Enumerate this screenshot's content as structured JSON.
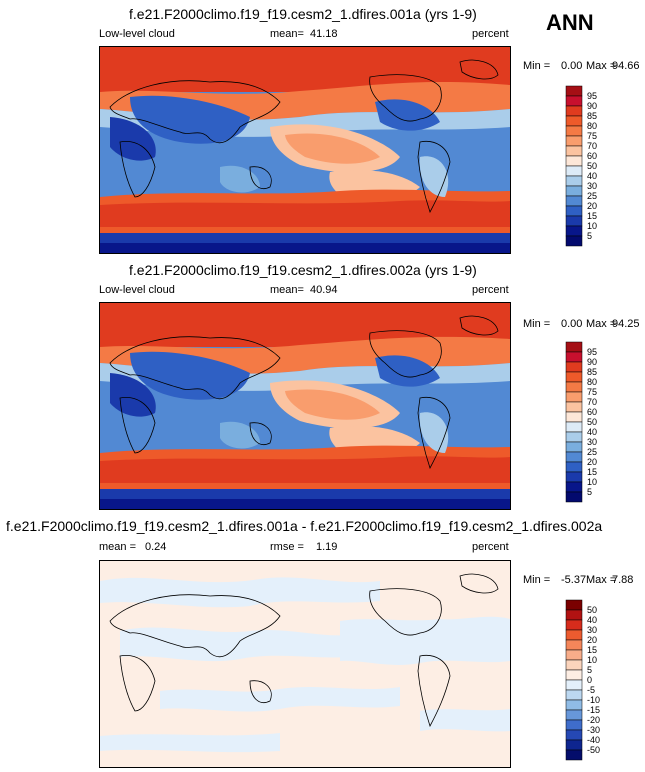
{
  "season": "ANN",
  "chart_data": [
    {
      "type": "heatmap",
      "title": "f.e21.F2000climo.f19_f19.cesm2_1.dfires.001a (yrs 1-9)",
      "left_label": "Low-level cloud",
      "mean_label": "mean=",
      "mean": "41.18",
      "units": "percent",
      "min_label": "Min =",
      "min": "0.00",
      "max_label": "Max =",
      "max": "94.66",
      "colorbar_levels": [
        "95",
        "90",
        "85",
        "80",
        "75",
        "70",
        "60",
        "50",
        "40",
        "30",
        "25",
        "20",
        "15",
        "10",
        "5"
      ]
    },
    {
      "type": "heatmap",
      "title": "f.e21.F2000climo.f19_f19.cesm2_1.dfires.002a (yrs 1-9)",
      "left_label": "Low-level cloud",
      "mean_label": "mean=",
      "mean": "40.94",
      "units": "percent",
      "min_label": "Min =",
      "min": "0.00",
      "max_label": "Max =",
      "max": "94.25",
      "colorbar_levels": [
        "95",
        "90",
        "85",
        "80",
        "75",
        "70",
        "60",
        "50",
        "40",
        "30",
        "25",
        "20",
        "15",
        "10",
        "5"
      ]
    },
    {
      "type": "heatmap",
      "title": "f.e21.F2000climo.f19_f19.cesm2_1.dfires.001a - f.e21.F2000climo.f19_f19.cesm2_1.dfires.002a",
      "mean_label": "mean =",
      "mean": "0.24",
      "rmse_label": "rmse =",
      "rmse": "1.19",
      "units": "percent",
      "min_label": "Min =",
      "min": "-5.37",
      "max_label": "Max =",
      "max": "7.88",
      "colorbar_levels": [
        "50",
        "40",
        "30",
        "20",
        "15",
        "10",
        "5",
        "0",
        "-5",
        "-10",
        "-15",
        "-20",
        "-30",
        "-40",
        "-50"
      ]
    }
  ],
  "colors": {
    "abs_scale": [
      "#a50f15",
      "#c8102e",
      "#e03b1f",
      "#ee5a2a",
      "#f47a45",
      "#f99d6d",
      "#fbc3a0",
      "#fde7d8",
      "#ddebf7",
      "#aacdea",
      "#7aaede",
      "#5289d3",
      "#2f60c4",
      "#1a3aab",
      "#08168a",
      "#030a6e"
    ],
    "diff_scale": [
      "#7a0000",
      "#b11212",
      "#d62c1c",
      "#ec5b2f",
      "#f4865a",
      "#f8ad8a",
      "#fbd4bc",
      "#fdeee4",
      "#e4f0fb",
      "#bcd8f1",
      "#90bce6",
      "#6797da",
      "#3f6dcb",
      "#2548b4",
      "#0e258f",
      "#040d6b"
    ]
  }
}
